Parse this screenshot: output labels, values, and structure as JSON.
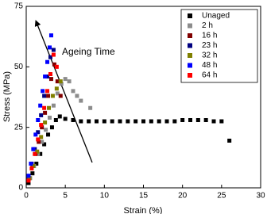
{
  "chart_data": {
    "type": "scatter",
    "xlabel": "Strain (%)",
    "ylabel": "Stress (MPa)",
    "annotation": "Ageing Time",
    "xlim": [
      0,
      30
    ],
    "xticks": [
      0,
      5,
      10,
      15,
      20,
      25,
      30
    ],
    "ylim": [
      0,
      75
    ],
    "yticks": [
      0,
      25,
      50,
      75
    ],
    "legend": "upper right",
    "grid": false,
    "series": [
      {
        "name": "Unaged",
        "color": "#000000",
        "x": [
          0.3,
          0.8,
          1.3,
          1.8,
          2.3,
          2.8,
          3.3,
          3.8,
          4.3,
          5,
          6,
          7,
          8,
          9,
          10,
          11,
          12,
          13,
          14,
          15,
          16,
          17,
          18,
          19,
          20,
          21,
          22,
          23,
          24,
          25,
          26
        ],
        "values": [
          2,
          6,
          10,
          14,
          18,
          22,
          25,
          28,
          29.5,
          28.5,
          28,
          27.5,
          27.5,
          27.5,
          27.5,
          27.5,
          27.5,
          27.5,
          27.5,
          27.5,
          27.5,
          27.5,
          27.5,
          27.5,
          28,
          28,
          28,
          28,
          27.5,
          27.5,
          19.5
        ]
      },
      {
        "name": "2 h",
        "color": "#8c8c8c",
        "x": [
          0.5,
          1,
          1.5,
          2,
          2.5,
          3,
          3.5,
          4,
          4.5,
          5,
          5.5,
          6,
          6.5,
          7,
          8.2
        ],
        "values": [
          4,
          9,
          14,
          19,
          24,
          29,
          34,
          39,
          43,
          45,
          44,
          40,
          38,
          36,
          33
        ]
      },
      {
        "name": "16 h",
        "color": "#800000",
        "x": [
          0.4,
          0.8,
          1.2,
          1.6,
          2,
          2.4,
          2.8,
          3.2,
          3.6,
          4,
          4.4
        ],
        "values": [
          4,
          9,
          14,
          19,
          25,
          31,
          38,
          45,
          51,
          44,
          38
        ]
      },
      {
        "name": "23 h",
        "color": "#000080",
        "x": [
          0.3,
          0.7,
          1.1,
          1.5,
          1.9,
          2.3,
          2.7,
          3.1,
          3.5
        ],
        "values": [
          4,
          10,
          16,
          23,
          30,
          38,
          46,
          54,
          57
        ]
      },
      {
        "name": "32 h",
        "color": "#808000",
        "x": [
          0.4,
          0.9,
          1.4,
          1.9,
          2.4,
          2.9,
          3.4,
          3.9,
          4.4
        ],
        "values": [
          4,
          9,
          15,
          21,
          27,
          33,
          38,
          41,
          44
        ]
      },
      {
        "name": "48 h",
        "color": "#0000ff",
        "x": [
          0.3,
          0.6,
          0.9,
          1.2,
          1.5,
          1.8,
          2.1,
          2.4,
          2.7,
          3,
          3.2
        ],
        "values": [
          5,
          10,
          16,
          22,
          28,
          34,
          40,
          46,
          52,
          58,
          63
        ]
      },
      {
        "name": "64 h",
        "color": "#ff0000",
        "x": [
          0.3,
          0.7,
          1.1,
          1.5,
          1.9,
          2.3,
          2.7,
          3.1,
          3.5,
          3.9
        ],
        "values": [
          3,
          8,
          14,
          20,
          26,
          33,
          40,
          47,
          55,
          50
        ]
      }
    ]
  }
}
